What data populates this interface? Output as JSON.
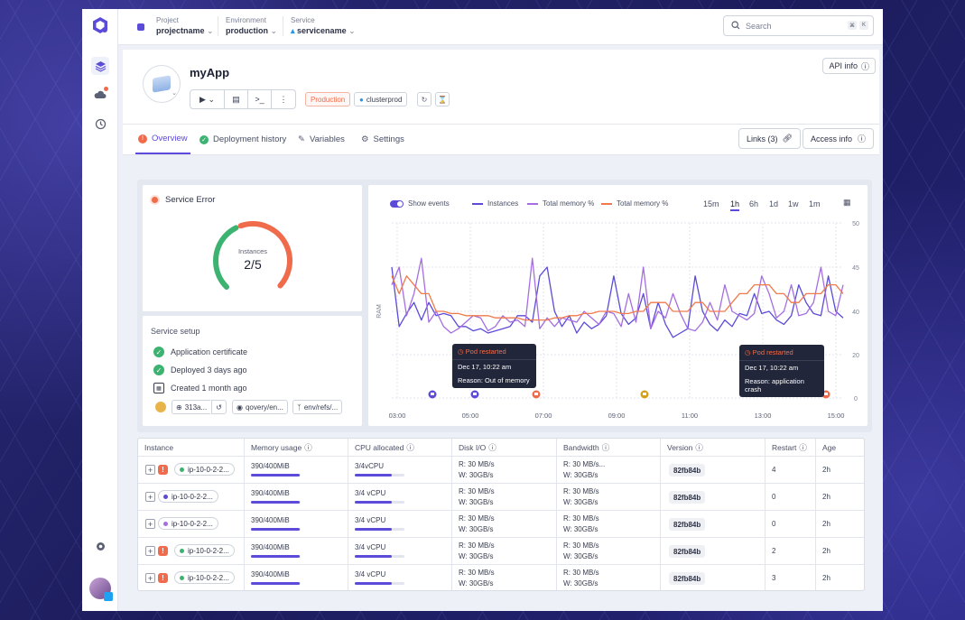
{
  "topbar": {
    "project": {
      "label": "Project",
      "value": "projectname"
    },
    "environment": {
      "label": "Environment",
      "value": "production"
    },
    "service": {
      "label": "Service",
      "value": "servicename"
    },
    "search_placeholder": "Search",
    "kbd1": "⌘",
    "kbd2": "K"
  },
  "app": {
    "name": "myApp",
    "env_tag": "Production",
    "cluster_tag": "clusterprod",
    "api_info": "API info"
  },
  "tabs": [
    {
      "label": "Overview",
      "icon": "error-icon"
    },
    {
      "label": "Deployment history",
      "icon": "check-icon"
    },
    {
      "label": "Variables",
      "icon": "wrench-icon"
    },
    {
      "label": "Settings",
      "icon": "gear-icon"
    }
  ],
  "header_buttons": {
    "links": "Links (3)",
    "access": "Access info"
  },
  "status": {
    "label": "Service Error",
    "gauge_label": "Instances",
    "gauge_value": "2/5",
    "gauge_fraction": 0.4,
    "colors": {
      "ok": "#3cb371",
      "error": "#f06b4b"
    }
  },
  "setup": {
    "title": "Service setup",
    "items": [
      "Application certificate",
      "Deployed 3 days ago",
      "Created 1 month ago"
    ],
    "commit": "313a...",
    "repo": "qovery/en...",
    "branch": "env/refs/..."
  },
  "chart_data": {
    "type": "line",
    "ylabel": "RAM",
    "yticks": [
      0,
      20,
      40,
      45,
      50
    ],
    "xticks": [
      "03:00",
      "05:00",
      "07:00",
      "09:00",
      "11:00",
      "13:00",
      "15:00"
    ],
    "show_events_label": "Show events",
    "time_ranges": [
      "15m",
      "1h",
      "6h",
      "1d",
      "1w",
      "1m"
    ],
    "active_range": "1h",
    "series": [
      {
        "name": "Instances",
        "color": "#5b4bd8",
        "values": [
          45,
          33,
          39,
          41,
          36,
          41,
          38,
          39,
          38,
          33,
          33,
          31,
          32,
          30,
          31,
          32,
          33,
          38,
          38,
          35,
          44,
          45,
          40,
          33,
          38,
          30,
          35,
          32,
          34,
          38,
          44,
          39,
          34,
          37,
          42,
          32,
          41,
          34,
          28,
          30,
          32,
          44,
          40,
          34,
          31,
          36,
          33,
          39,
          38,
          42,
          39,
          40,
          36,
          34,
          38,
          43,
          41,
          39,
          38,
          44,
          40,
          37
        ]
      },
      {
        "name": "Total memory %",
        "color": "#a56ee0",
        "values": [
          43,
          45,
          38,
          42,
          46,
          35,
          40,
          33,
          30,
          32,
          35,
          38,
          37,
          31,
          33,
          38,
          35,
          36,
          33,
          46,
          32,
          37,
          33,
          37,
          36,
          35,
          40,
          37,
          34,
          40,
          39,
          33,
          42,
          35,
          45,
          32,
          40,
          37,
          42,
          39,
          32,
          31,
          35,
          41,
          36,
          43,
          40,
          38,
          36,
          39,
          44,
          42,
          37,
          40,
          43,
          38,
          39,
          41,
          45,
          40,
          38,
          43
        ]
      },
      {
        "name": "Total memory %",
        "color": "#f07a4b",
        "values": [
          44,
          42,
          44,
          43,
          42,
          42,
          40,
          40,
          39,
          39,
          38,
          38,
          38,
          38,
          37,
          37,
          37,
          37,
          36,
          36,
          36,
          36,
          37,
          37,
          38,
          38,
          39,
          39,
          40,
          40,
          40,
          39,
          39,
          40,
          40,
          41,
          41,
          41,
          40,
          40,
          40,
          41,
          41,
          40,
          40,
          40,
          41,
          42,
          42,
          43,
          43,
          43,
          42,
          42,
          41,
          41,
          42,
          42,
          42,
          43,
          43,
          42
        ]
      }
    ],
    "events": [
      {
        "title": "Pod restarted",
        "date": "Dec 17, 10:22 am",
        "reason": "Reason: Out of memory"
      },
      {
        "title": "Pod restarted",
        "date": "Dec 17, 10:22 am",
        "reason": "Reason: application crash"
      }
    ],
    "event_markers": [
      {
        "color": "#5b4bd8"
      },
      {
        "color": "#5b4bd8"
      },
      {
        "color": "#f06b4b"
      },
      {
        "color": "#d4a017"
      },
      {
        "color": "#f06b4b"
      }
    ]
  },
  "table": {
    "headers": [
      "Instance",
      "Memory usage",
      "CPU allocated",
      "Disk I/O",
      "Bandwidth",
      "Version",
      "Restart",
      "Age"
    ],
    "rows": [
      {
        "error": true,
        "status_color": "#3cb371",
        "instance": "ip-10-0-2-2...",
        "memory": "390/400MiB",
        "mem_frac": 0.98,
        "cpu": "3/4vCPU",
        "cpu_frac": 0.75,
        "disk_r": "R: 30 MB/s",
        "disk_w": "W: 30GB/s",
        "bw_r": "R: 30 MB/s...",
        "bw_w": "W: 30GB/s",
        "version": "82fb84b",
        "restart": "4",
        "age": "2h"
      },
      {
        "error": false,
        "status_color": "#5b4bd8",
        "instance": "ip-10-0-2-2...",
        "memory": "390/400MiB",
        "mem_frac": 0.98,
        "cpu": "3/4 vCPU",
        "cpu_frac": 0.75,
        "disk_r": "R: 30 MB/s",
        "disk_w": "W: 30GB/s",
        "bw_r": "R: 30 MB/s",
        "bw_w": "W: 30GB/s",
        "version": "82fb84b",
        "restart": "0",
        "age": "2h"
      },
      {
        "error": false,
        "status_color": "#a56ee0",
        "instance": "ip-10-0-2-2...",
        "memory": "390/400MiB",
        "mem_frac": 0.98,
        "cpu": "3/4 vCPU",
        "cpu_frac": 0.75,
        "disk_r": "R: 30 MB/s",
        "disk_w": "W: 30GB/s",
        "bw_r": "R: 30 MB/s",
        "bw_w": "W: 30GB/s",
        "version": "82fb84b",
        "restart": "0",
        "age": "2h"
      },
      {
        "error": true,
        "status_color": "#3cb371",
        "instance": "ip-10-0-2-2...",
        "memory": "390/400MiB",
        "mem_frac": 0.98,
        "cpu": "3/4 vCPU",
        "cpu_frac": 0.75,
        "disk_r": "R: 30 MB/s",
        "disk_w": "W: 30GB/s",
        "bw_r": "R: 30 MB/s",
        "bw_w": "W: 30GB/s",
        "version": "82fb84b",
        "restart": "2",
        "age": "2h"
      },
      {
        "error": true,
        "status_color": "#3cb371",
        "instance": "ip-10-0-2-2...",
        "memory": "390/400MiB",
        "mem_frac": 0.98,
        "cpu": "3/4 vCPU",
        "cpu_frac": 0.75,
        "disk_r": "R: 30 MB/s",
        "disk_w": "W: 30GB/s",
        "bw_r": "R: 30 MB/s",
        "bw_w": "W: 30GB/s",
        "version": "82fb84b",
        "restart": "3",
        "age": "2h"
      }
    ]
  }
}
